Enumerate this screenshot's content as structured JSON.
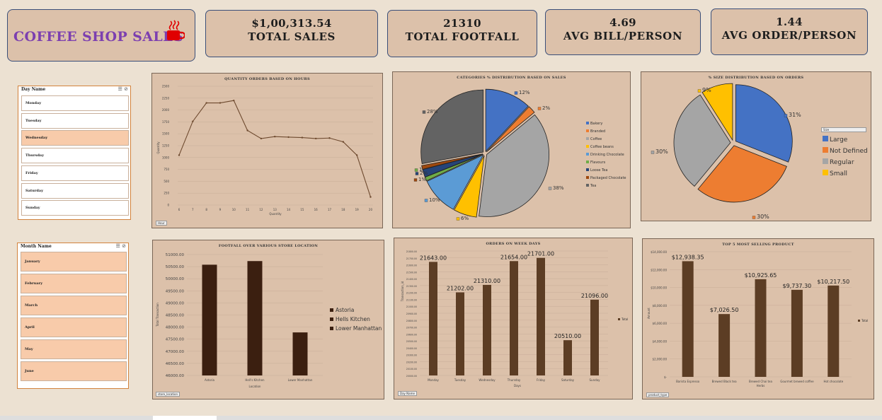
{
  "dashboard": {
    "title": "COFFEE SHOP SALES",
    "kpis": [
      {
        "value": "$1,00,313.54",
        "label": "TOTAL SALES"
      },
      {
        "value": "21310",
        "label": "TOTAL FOOTFALL"
      },
      {
        "value": "4.69",
        "label": "AVG BILL/PERSON"
      },
      {
        "value": "1.44",
        "label": "AVG ORDER/PERSON"
      }
    ]
  },
  "slicers": {
    "day": {
      "header": "Day Name",
      "items": [
        "Monday",
        "Tuesday",
        "Wednesday",
        "Thursday",
        "Friday",
        "Saturday",
        "Sunday"
      ],
      "selected": "Wednesday"
    },
    "month": {
      "header": "Month Name",
      "items": [
        "January",
        "February",
        "March",
        "April",
        "May",
        "June"
      ]
    }
  },
  "filters": {
    "hour": "Hour",
    "store": "store_location",
    "day": "Day Name",
    "product": "product_type",
    "size": "Size"
  },
  "chart_data": [
    {
      "type": "line",
      "title": "QUANTITY ORDERS BASED ON HOURS",
      "xlabel": "Quantity",
      "ylabel": "Quantity",
      "x": [
        "6",
        "7",
        "8",
        "9",
        "10",
        "11",
        "12",
        "13",
        "14",
        "15",
        "16",
        "17",
        "18",
        "19",
        "20"
      ],
      "values": [
        1050,
        1760,
        2150,
        2150,
        2200,
        1570,
        1400,
        1440,
        1430,
        1420,
        1400,
        1410,
        1330,
        1050,
        170
      ],
      "yticks": [
        "0",
        "250",
        "500",
        "750",
        "1000",
        "1250",
        "1500",
        "1750",
        "2000",
        "2250",
        "2500"
      ],
      "ylim": [
        0,
        2500
      ]
    },
    {
      "type": "pie",
      "title": "CATEGORIES % DISTRIBUTION BASED ON SALES",
      "categories": [
        "Bakery",
        "Branded",
        "Coffee",
        "Coffee beans",
        "Drinking Chocolate",
        "Flavours",
        "Loose Tea",
        "Packaged Chocolate",
        "Tea"
      ],
      "values": [
        12,
        2,
        38,
        6,
        10,
        1,
        2,
        1,
        28
      ],
      "labels": [
        "12%",
        "2%",
        "38%",
        "6%",
        "10%",
        "1%",
        "2%",
        "1%",
        "28%"
      ],
      "colors": [
        "#4472c4",
        "#ed7d31",
        "#a5a5a5",
        "#ffc000",
        "#5b9bd5",
        "#70ad47",
        "#264478",
        "#9e480e",
        "#636363"
      ]
    },
    {
      "type": "pie",
      "title": "% SIZE DISTRIBUTION BASED ON ORDERS",
      "categories": [
        "Large",
        "Not Defined",
        "Regular",
        "Small"
      ],
      "values": [
        31,
        30,
        30,
        9
      ],
      "labels": [
        "31%",
        "30%",
        "30%",
        "9%"
      ],
      "colors": [
        "#4472c4",
        "#ed7d31",
        "#a5a5a5",
        "#ffc000"
      ]
    },
    {
      "type": "bar",
      "title": "FOOTFALL OVER VARIOUS STORE LOCATION",
      "categories": [
        "Astoria",
        "Hell's Kitchen",
        "Lower Manhattan"
      ],
      "values": [
        50580,
        50730,
        47780
      ],
      "legend": [
        "Astoria",
        "Hells Kitchen",
        "Lower Manhattan"
      ],
      "xlabel": "Location",
      "ylabel": "Total Transaction",
      "yticks": [
        "46000.00",
        "46500.00",
        "47000.00",
        "47500.00",
        "48000.00",
        "48500.00",
        "49000.00",
        "49500.00",
        "50000.00",
        "50500.00",
        "51000.00"
      ],
      "ylim": [
        46000,
        51000
      ]
    },
    {
      "type": "bar",
      "title": "ORDERS ON WEEK DAYS",
      "categories": [
        "Monday",
        "Tuesday",
        "Wednesday",
        "Thursday",
        "Friday",
        "Saturday",
        "Sunday"
      ],
      "values": [
        21643,
        21202,
        21310,
        21654,
        21701,
        20510,
        21096
      ],
      "labels": [
        "21643.00",
        "21202.00",
        "21310.00",
        "21654.00",
        "21701.00",
        "20510.00",
        "21096.00"
      ],
      "xlabel": "Days",
      "ylabel": "Transaction_id",
      "legend": "Total",
      "yticks": [
        "20000.00",
        "20100.00",
        "20200.00",
        "20300.00",
        "20400.00",
        "20500.00",
        "20600.00",
        "20700.00",
        "20800.00",
        "20900.00",
        "21000.00",
        "21100.00",
        "21200.00",
        "21300.00",
        "21400.00",
        "21500.00",
        "21600.00",
        "21700.00",
        "21800.00"
      ],
      "ylim": [
        20000,
        21800
      ]
    },
    {
      "type": "bar",
      "title": "TOP 5 MOST SELLING PRODUCT",
      "categories": [
        "Barista Espresso",
        "Brewed Black tea",
        "Brewed Chai tea\nHerbs",
        "Gourmet brewed coffee",
        "Hot chocolate"
      ],
      "values": [
        12938.35,
        7026.5,
        10925.65,
        9737.3,
        10217.5
      ],
      "labels": [
        "$12,938.35",
        "$7,026.50",
        "$10,925.65",
        "$9,737.30",
        "$10,217.50"
      ],
      "ylabel": "Amount",
      "legend": "Total",
      "yticks": [
        "$-",
        "$2,000.00",
        "$4,000.00",
        "$6,000.00",
        "$8,000.00",
        "$10,000.00",
        "$12,000.00",
        "$14,000.00"
      ],
      "ylim": [
        0,
        14000
      ]
    }
  ]
}
